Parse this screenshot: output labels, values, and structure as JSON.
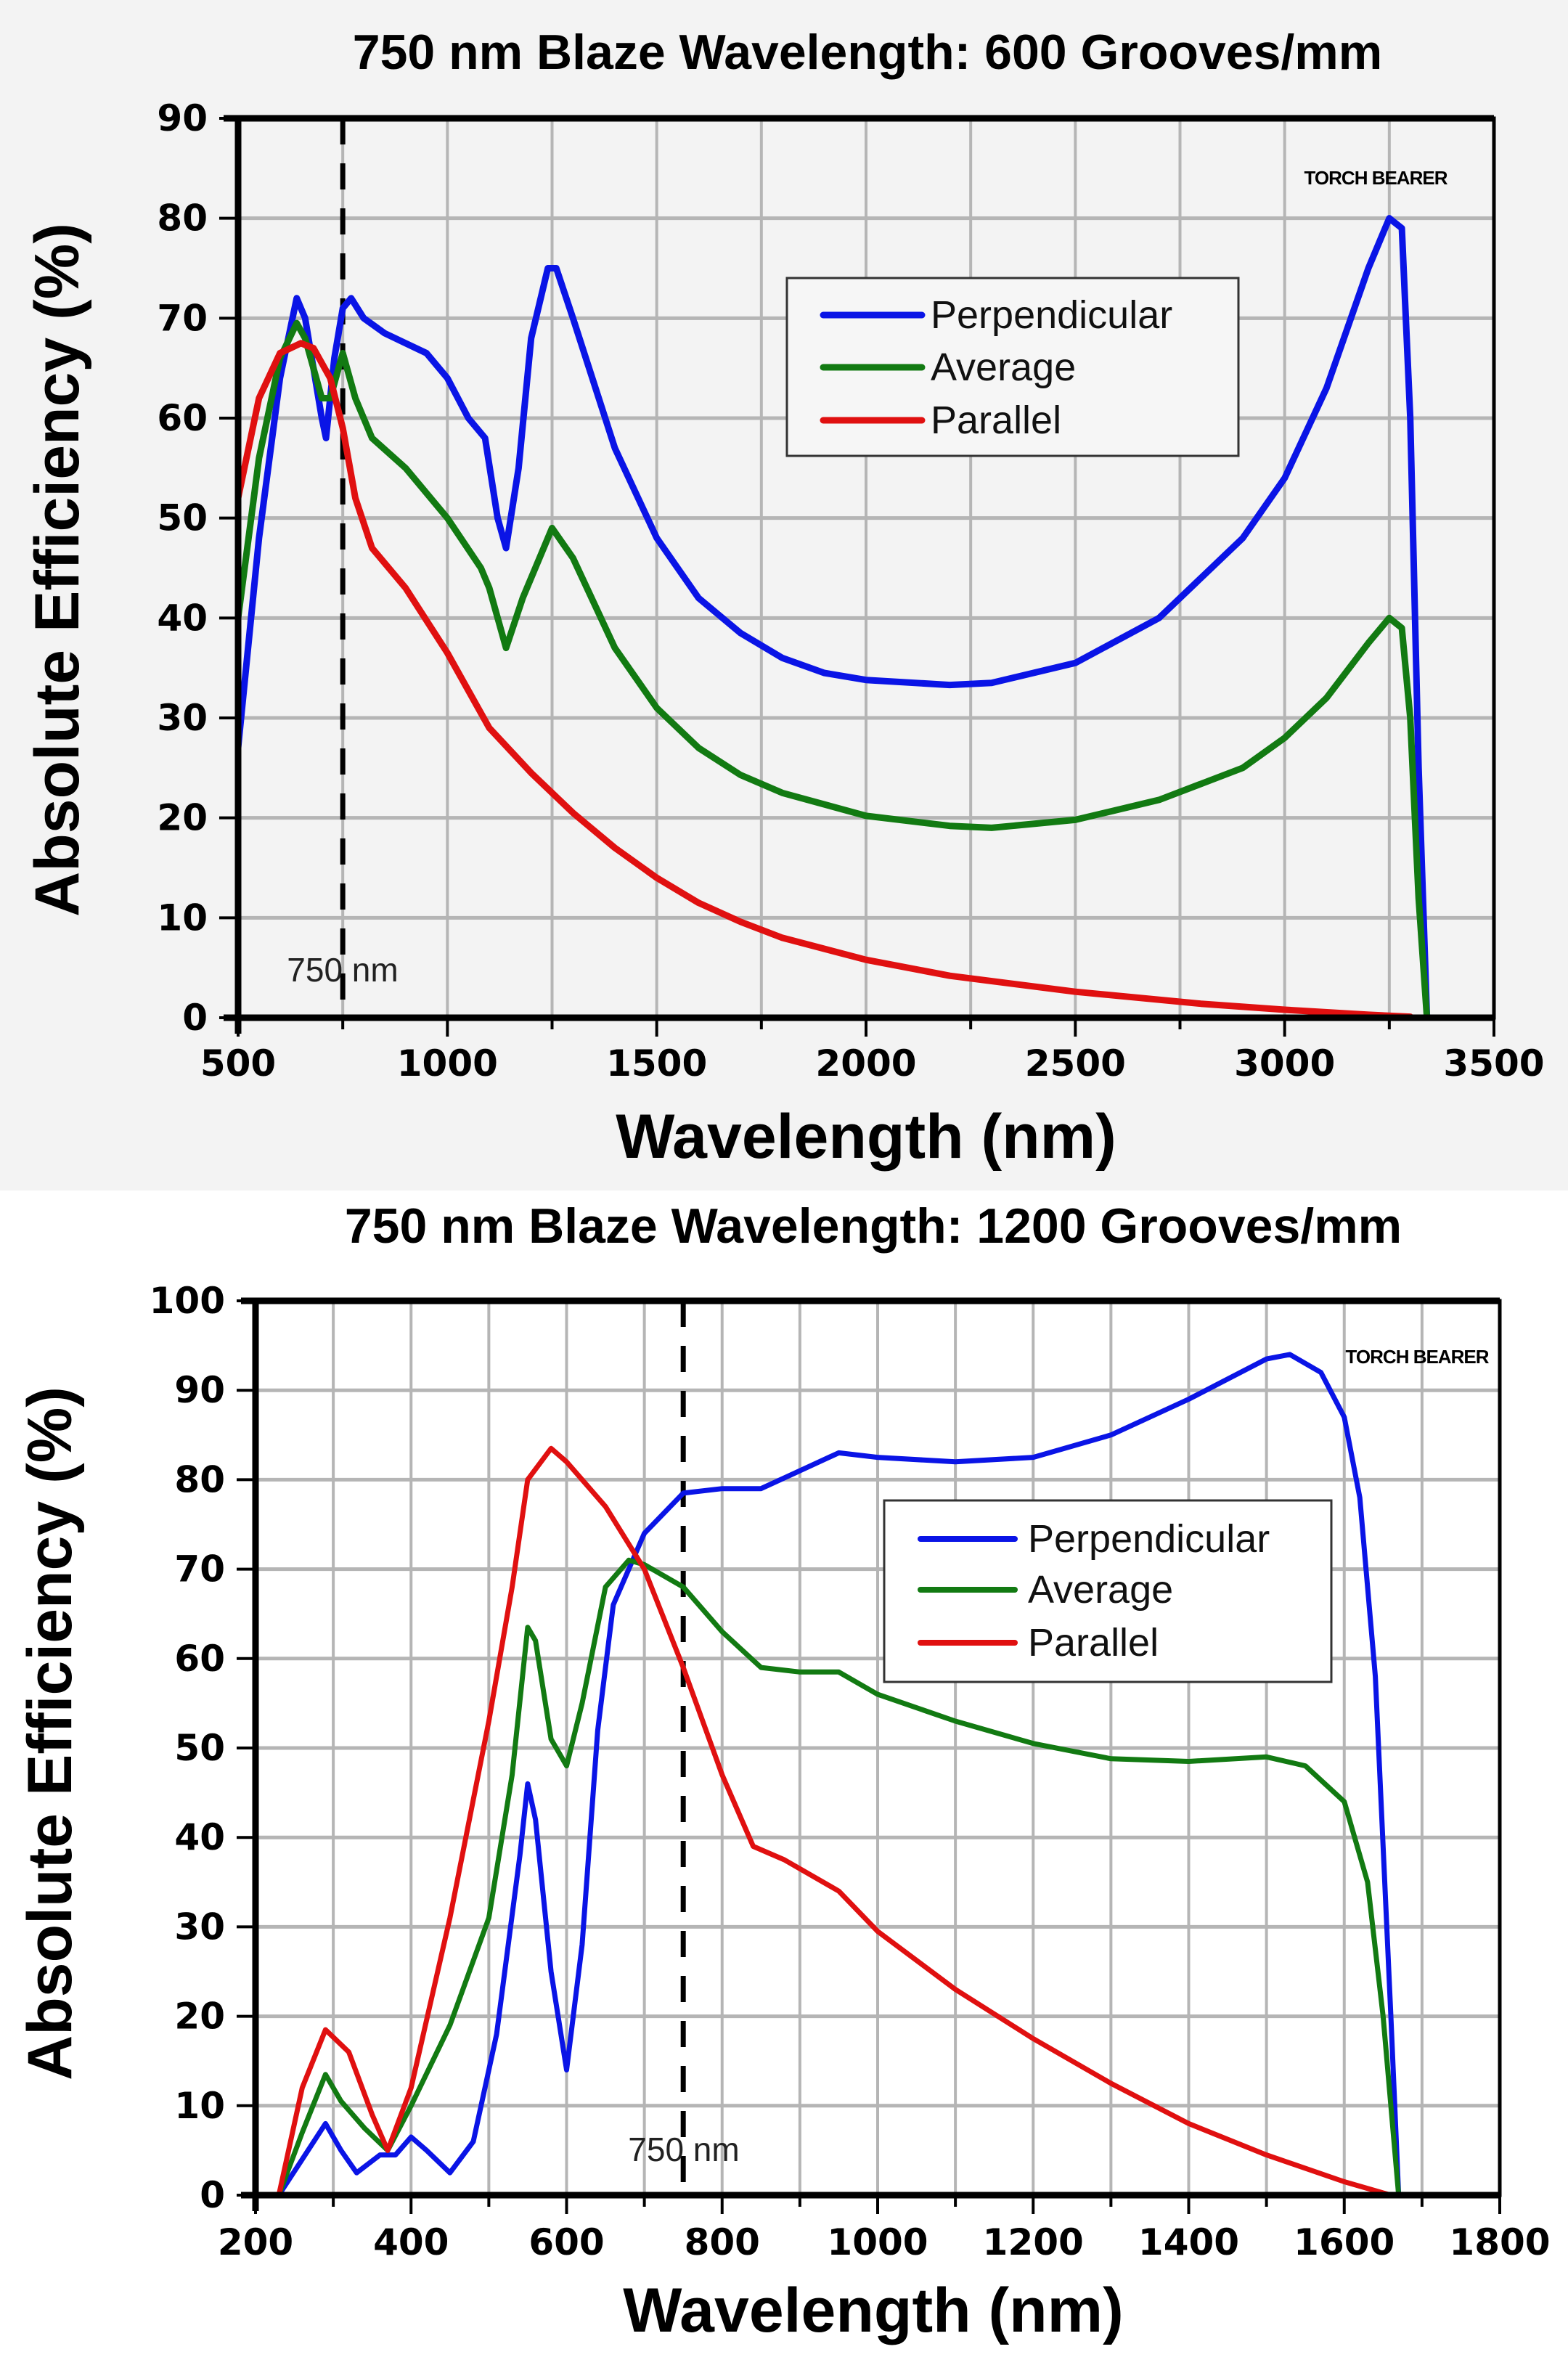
{
  "chart_data": [
    {
      "type": "line",
      "title": "750 nm Blaze Wavelength: 600 Grooves/mm",
      "xlabel": "Wavelength (nm)",
      "ylabel": "Absolute Efficiency (%)",
      "xlim": [
        500,
        3500
      ],
      "ylim": [
        0,
        90
      ],
      "xticks": [
        500,
        1000,
        1500,
        2000,
        2500,
        3000,
        3500
      ],
      "yticks": [
        0,
        10,
        20,
        30,
        40,
        50,
        60,
        70,
        80,
        90
      ],
      "x_grid_step": 250,
      "y_grid_step": 10,
      "grid": true,
      "legend_placement": "upper-center",
      "watermark": "TORCH BEARER",
      "annotation": {
        "label": "750 nm",
        "x": 750,
        "style": "dashed vertical line"
      },
      "series": [
        {
          "name": "Perpendicular",
          "color": "#0a14e6",
          "x": [
            500,
            550,
            600,
            640,
            660,
            700,
            710,
            730,
            750,
            770,
            800,
            850,
            900,
            950,
            1000,
            1050,
            1090,
            1120,
            1140,
            1170,
            1200,
            1240,
            1260,
            1300,
            1400,
            1500,
            1600,
            1700,
            1800,
            1900,
            2000,
            2200,
            2300,
            2500,
            2700,
            2900,
            3000,
            3100,
            3200,
            3250,
            3280,
            3300,
            3320,
            3340
          ],
          "y": [
            27,
            48,
            64,
            72,
            70,
            60,
            58,
            66,
            71,
            72,
            70,
            68.5,
            67.5,
            66.5,
            64,
            60,
            58,
            50,
            47,
            55,
            68,
            75,
            75,
            70,
            57,
            48,
            42,
            38.5,
            36,
            34.5,
            33.8,
            33.3,
            33.5,
            35.5,
            40,
            48,
            54,
            63,
            75,
            80,
            79,
            60,
            25,
            0
          ]
        },
        {
          "name": "Average",
          "color": "#127a12",
          "x": [
            500,
            550,
            600,
            640,
            660,
            700,
            720,
            750,
            780,
            820,
            900,
            1000,
            1080,
            1100,
            1140,
            1180,
            1250,
            1300,
            1400,
            1500,
            1600,
            1700,
            1800,
            2000,
            2200,
            2300,
            2500,
            2700,
            2900,
            3000,
            3100,
            3200,
            3250,
            3280,
            3300,
            3320,
            3340
          ],
          "y": [
            40,
            56,
            66,
            69.5,
            68,
            62,
            62,
            66.5,
            62,
            58,
            55,
            50,
            45,
            43,
            37,
            42,
            49,
            46,
            37,
            31,
            27,
            24.3,
            22.5,
            20.2,
            19.2,
            19,
            19.8,
            21.8,
            25,
            28,
            32,
            37.5,
            40,
            39,
            30,
            12,
            0
          ]
        },
        {
          "name": "Parallel",
          "color": "#e01010",
          "x": [
            500,
            550,
            600,
            650,
            680,
            720,
            750,
            780,
            820,
            900,
            1000,
            1100,
            1200,
            1300,
            1400,
            1500,
            1600,
            1700,
            1800,
            2000,
            2200,
            2500,
            2800,
            3000,
            3200,
            3300
          ],
          "y": [
            52,
            62,
            66.5,
            67.5,
            67,
            64,
            59,
            52,
            47,
            43,
            36.5,
            29,
            24.5,
            20.5,
            17,
            14,
            11.5,
            9.6,
            8,
            5.8,
            4.2,
            2.6,
            1.4,
            0.8,
            0.3,
            0.1
          ]
        }
      ]
    },
    {
      "type": "line",
      "title": "750 nm Blaze Wavelength: 1200 Grooves/mm",
      "xlabel": "Wavelength (nm)",
      "ylabel": "Absolute Efficiency (%)",
      "xlim": [
        200,
        1800
      ],
      "ylim": [
        0,
        100
      ],
      "xticks": [
        200,
        400,
        600,
        800,
        1000,
        1200,
        1400,
        1600,
        1800
      ],
      "yticks": [
        0,
        10,
        20,
        30,
        40,
        50,
        60,
        70,
        80,
        90,
        100
      ],
      "x_grid_step": 100,
      "y_grid_step": 10,
      "grid": true,
      "legend_placement": "center-right",
      "watermark": "TORCH BEARER",
      "annotation": {
        "label": "750 nm",
        "x": 750,
        "style": "dashed vertical line"
      },
      "series": [
        {
          "name": "Perpendicular",
          "color": "#0a14e6",
          "x": [
            230,
            260,
            290,
            310,
            330,
            360,
            380,
            400,
            420,
            450,
            480,
            510,
            540,
            550,
            560,
            580,
            600,
            620,
            640,
            660,
            700,
            750,
            800,
            850,
            900,
            950,
            1000,
            1100,
            1200,
            1300,
            1400,
            1500,
            1530,
            1570,
            1600,
            1620,
            1640,
            1660,
            1670
          ],
          "y": [
            0,
            4,
            8,
            5,
            2.5,
            4.5,
            4.5,
            6.5,
            5,
            2.5,
            6,
            18,
            38,
            46,
            42,
            25,
            14,
            28,
            52,
            66,
            74,
            78.5,
            79,
            79,
            81,
            83,
            82.5,
            82,
            82.5,
            85,
            89,
            93.5,
            94,
            92,
            87,
            78,
            58,
            20,
            0
          ]
        },
        {
          "name": "Average",
          "color": "#127a12",
          "x": [
            230,
            260,
            290,
            310,
            340,
            370,
            400,
            450,
            500,
            530,
            550,
            560,
            580,
            600,
            620,
            650,
            680,
            700,
            750,
            800,
            850,
            900,
            950,
            1000,
            1100,
            1200,
            1300,
            1400,
            1500,
            1550,
            1600,
            1630,
            1650,
            1670
          ],
          "y": [
            0,
            7,
            13.5,
            10.5,
            7.5,
            5,
            10,
            19,
            31,
            47,
            63.5,
            62,
            51,
            48,
            55,
            68,
            71,
            70.5,
            68,
            63,
            59,
            58.5,
            58.5,
            56,
            53,
            50.5,
            48.8,
            48.5,
            49,
            48,
            44,
            35,
            20,
            0
          ]
        },
        {
          "name": "Parallel",
          "color": "#e01010",
          "x": [
            230,
            260,
            290,
            320,
            350,
            370,
            400,
            450,
            500,
            530,
            550,
            580,
            600,
            650,
            700,
            750,
            800,
            840,
            880,
            950,
            1000,
            1100,
            1200,
            1300,
            1400,
            1500,
            1600,
            1660
          ],
          "y": [
            0,
            12,
            18.5,
            16,
            9,
            5,
            12,
            31,
            53,
            68,
            80,
            83.5,
            82,
            77,
            70,
            59,
            47,
            39,
            37.5,
            34,
            29.5,
            23,
            17.5,
            12.5,
            8,
            4.5,
            1.5,
            0
          ]
        }
      ]
    }
  ]
}
